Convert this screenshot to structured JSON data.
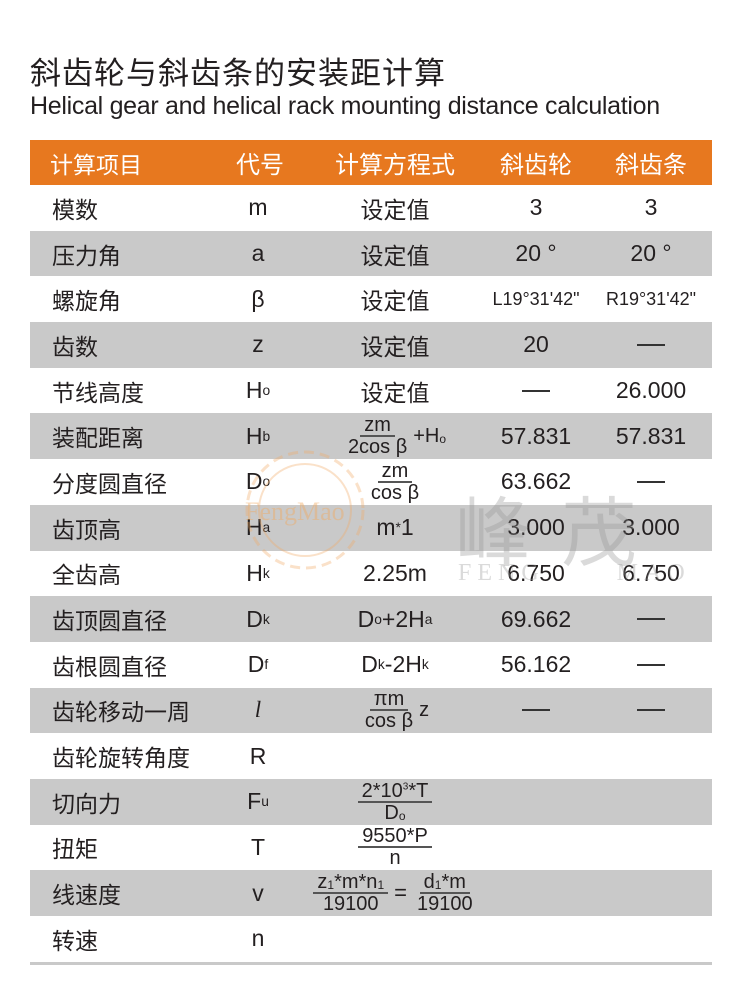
{
  "title": "斜齿轮与斜齿条的安装距计算",
  "subtitle": "Helical gear and helical rack mounting distance calculation",
  "colors": {
    "header_bg": "#e7781f",
    "stripe": "#c9c9c9",
    "header_text": "#ffffff"
  },
  "watermark": {
    "logo_text": "FengMao",
    "cn": "峰茂",
    "en": "FENG MAO"
  },
  "header": [
    "计算项目",
    "代号",
    "计算方程式",
    "斜齿轮",
    "斜齿条"
  ],
  "rows": [
    {
      "item": "模数",
      "sym": "m",
      "formula": "设定值",
      "gear": "3",
      "rack": "3"
    },
    {
      "item": "压力角",
      "sym": "a",
      "formula": "设定值",
      "gear": "20 °",
      "rack": "20 °"
    },
    {
      "item": "螺旋角",
      "sym": "β",
      "formula": "设定值",
      "gear": "L19°31'42\"",
      "rack": "R19°31'42\""
    },
    {
      "item": "齿数",
      "sym": "z",
      "formula": "设定值",
      "gear": "20",
      "rack": "—"
    },
    {
      "item": "节线高度",
      "sym": "H",
      "sym_sub": "o",
      "formula": "设定值",
      "gear": "—",
      "rack": "26.000"
    },
    {
      "item": "装配距离",
      "sym": "H",
      "sym_sub": "b",
      "num": "zm",
      "den": "2cos β",
      "suffix": "+H",
      "suffix_sub": "o",
      "gear": "57.831",
      "rack": "57.831"
    },
    {
      "item": "分度圆直径",
      "sym": "D",
      "sym_sub": "o",
      "num": "zm",
      "den": "cos β",
      "gear": "63.662",
      "rack": "—"
    },
    {
      "item": "齿顶高",
      "sym": "H",
      "sym_sub": "a",
      "formula": "m*1",
      "gear": "3.000",
      "rack": "3.000"
    },
    {
      "item": "全齿高",
      "sym": "H",
      "sym_sub": "k",
      "formula": "2.25m",
      "gear": "6.750",
      "rack": "6.750"
    },
    {
      "item": "齿顶圆直径",
      "sym": "D",
      "sym_sub": "k",
      "formula": "Do+2Ha",
      "gear": "69.662",
      "rack": "—"
    },
    {
      "item": "齿根圆直径",
      "sym": "D",
      "sym_sub": "f",
      "formula": "Dk-2Hk",
      "gear": "56.162",
      "rack": "—"
    },
    {
      "item": "齿轮移动一周",
      "sym": "l",
      "num": "πm",
      "den": "cos β",
      "suffix": "z",
      "gear": "—",
      "rack": "—"
    },
    {
      "item": "齿轮旋转角度",
      "sym": "R"
    },
    {
      "item": "切向力",
      "sym": "F",
      "sym_sub": "u",
      "num": "2*10³*T",
      "den": "Do"
    },
    {
      "item": "扭矩",
      "sym": "T",
      "num": "9550*P",
      "den": "n"
    },
    {
      "item": "线速度",
      "sym": "v",
      "num": "z1*m*n1",
      "den": "19100",
      "eq": "=",
      "num2": "d1*m",
      "den2": "19100"
    },
    {
      "item": "转速",
      "sym": "n"
    }
  ]
}
